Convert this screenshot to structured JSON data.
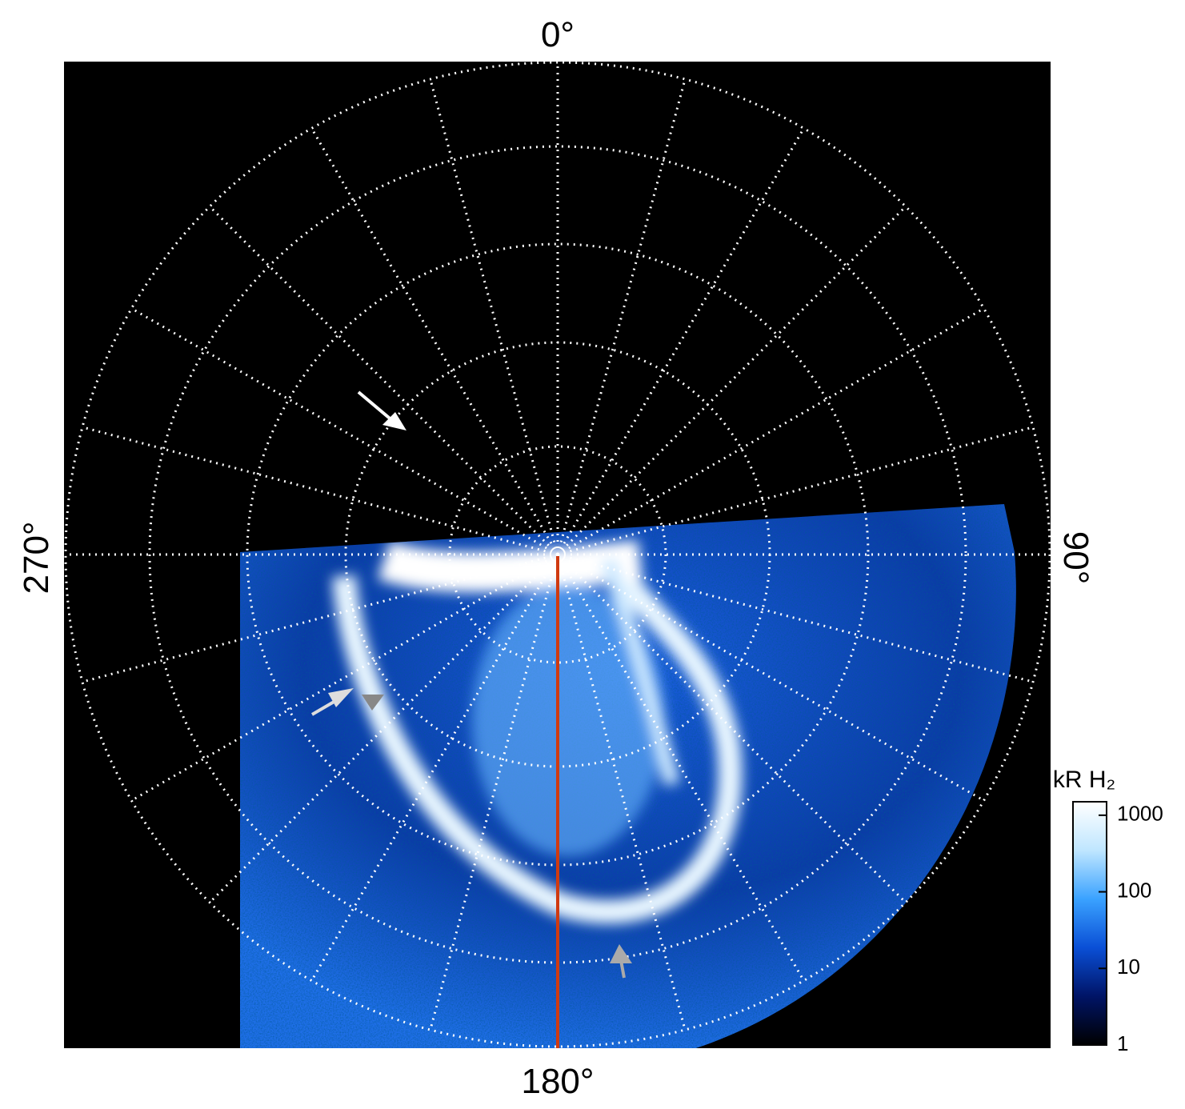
{
  "chart_data": {
    "type": "polar-image",
    "angle_labels": [
      "0°",
      "90°",
      "180°",
      "270°"
    ],
    "colorbar": {
      "label": "kR H₂",
      "scale": "log",
      "lim": [
        1,
        1500
      ],
      "ticks": [
        1,
        10,
        100,
        1000
      ],
      "colormap": [
        "#000000",
        "#001466",
        "#0a4fd6",
        "#3aa2ff",
        "#bfe6ff",
        "#ffffff"
      ]
    },
    "meridian_color": "#d03a10"
  }
}
